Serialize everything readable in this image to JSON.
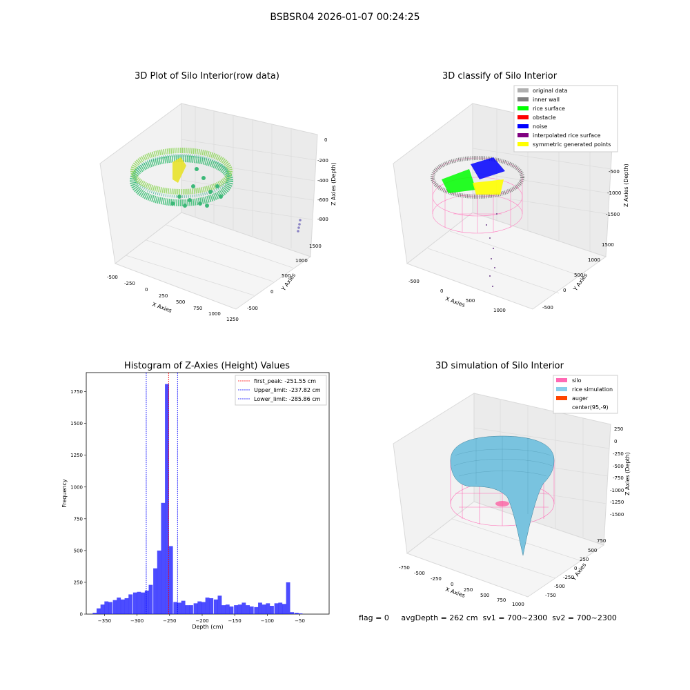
{
  "suptitle": "BSBSR04 2026-01-07 00:24:25",
  "footer": {
    "text": "flag = 0     avgDepth = 262 cm  sv1 = 700~2300  sv2 = 700~2300"
  },
  "panel_raw": {
    "title": "3D Plot of Silo Interior(row data)",
    "x_label": "X Axies",
    "y_label": "Y Axies",
    "z_label": "Z Axies (Depth)",
    "x_ticks": [
      "-500",
      "-250",
      "0",
      "250",
      "500",
      "750",
      "1000",
      "1250"
    ],
    "y_ticks": [
      "-500",
      "0",
      "500",
      "1000",
      "1500"
    ],
    "z_ticks": [
      "0",
      "-200",
      "-400",
      "-600",
      "-800"
    ]
  },
  "panel_classify": {
    "title": "3D classify of Silo Interior",
    "x_label": "X Axies",
    "y_label": "Y Axies",
    "z_label": "Z Axies (Depth)",
    "x_ticks": [
      "-500",
      "0",
      "500",
      "1000"
    ],
    "y_ticks": [
      "-500",
      "0",
      "500",
      "1000",
      "1500"
    ],
    "z_ticks": [
      "-500",
      "-1000",
      "-1500"
    ],
    "legend": [
      {
        "label": "original data",
        "color": "#b0b0b0"
      },
      {
        "label": "inner wall",
        "color": "#808080"
      },
      {
        "label": "rice surface",
        "color": "#00ff00"
      },
      {
        "label": "obstacle",
        "color": "#ff0000"
      },
      {
        "label": "noise",
        "color": "#0000ff"
      },
      {
        "label": "interpolated rice surface",
        "color": "#800080"
      },
      {
        "label": "symmetric generated points",
        "color": "#ffff00"
      }
    ]
  },
  "panel_sim": {
    "title": "3D simulation of Silo Interior",
    "x_label": "X Axies",
    "y_label": "Y Axies",
    "z_label": "Z Axies (Depth)",
    "x_ticks": [
      "-750",
      "-500",
      "-250",
      "0",
      "250",
      "500",
      "750",
      "1000"
    ],
    "y_ticks": [
      "750",
      "500",
      "250",
      "0",
      "-250",
      "-500",
      "-750"
    ],
    "z_ticks": [
      "250",
      "0",
      "-250",
      "-500",
      "-750",
      "-1000",
      "-1250",
      "-1500"
    ],
    "legend": [
      {
        "label": "silo",
        "color": "#ff69b4"
      },
      {
        "label": "rice simulation",
        "color": "#87ceeb"
      },
      {
        "label": "auger",
        "color": "#ff4500"
      },
      {
        "label": "center(95,-9)",
        "color": ""
      }
    ]
  },
  "chart_data": {
    "type": "bar",
    "title": "Histogram of Z-Axies (Height) Values",
    "xlabel": "Depth (cm)",
    "ylabel": "Frequency",
    "xlim": [
      -378,
      -5
    ],
    "ylim": [
      0,
      1900
    ],
    "bar_color": "#0000ff",
    "bin_width": 6.2,
    "x_ticks": [
      -350,
      -300,
      -250,
      -200,
      -150,
      -100,
      -50
    ],
    "y_ticks": [
      0,
      250,
      500,
      750,
      1000,
      1250,
      1500,
      1750
    ],
    "bins": [
      {
        "x": -365,
        "value": 10
      },
      {
        "x": -359,
        "value": 45
      },
      {
        "x": -353,
        "value": 75
      },
      {
        "x": -347,
        "value": 100
      },
      {
        "x": -341,
        "value": 95
      },
      {
        "x": -334,
        "value": 110
      },
      {
        "x": -328,
        "value": 130
      },
      {
        "x": -322,
        "value": 115
      },
      {
        "x": -316,
        "value": 125
      },
      {
        "x": -310,
        "value": 155
      },
      {
        "x": -303,
        "value": 170
      },
      {
        "x": -297,
        "value": 175
      },
      {
        "x": -291,
        "value": 170
      },
      {
        "x": -285,
        "value": 185
      },
      {
        "x": -279,
        "value": 230
      },
      {
        "x": -272,
        "value": 360
      },
      {
        "x": -266,
        "value": 500
      },
      {
        "x": -260,
        "value": 875
      },
      {
        "x": -254,
        "value": 1810
      },
      {
        "x": -248,
        "value": 535
      },
      {
        "x": -241,
        "value": 95
      },
      {
        "x": -235,
        "value": 90
      },
      {
        "x": -229,
        "value": 105
      },
      {
        "x": -223,
        "value": 70
      },
      {
        "x": -217,
        "value": 70
      },
      {
        "x": -210,
        "value": 85
      },
      {
        "x": -204,
        "value": 100
      },
      {
        "x": -198,
        "value": 95
      },
      {
        "x": -192,
        "value": 130
      },
      {
        "x": -186,
        "value": 125
      },
      {
        "x": -179,
        "value": 115
      },
      {
        "x": -173,
        "value": 145
      },
      {
        "x": -167,
        "value": 70
      },
      {
        "x": -161,
        "value": 75
      },
      {
        "x": -155,
        "value": 60
      },
      {
        "x": -148,
        "value": 70
      },
      {
        "x": -142,
        "value": 75
      },
      {
        "x": -136,
        "value": 90
      },
      {
        "x": -130,
        "value": 70
      },
      {
        "x": -124,
        "value": 60
      },
      {
        "x": -117,
        "value": 55
      },
      {
        "x": -111,
        "value": 90
      },
      {
        "x": -105,
        "value": 75
      },
      {
        "x": -99,
        "value": 85
      },
      {
        "x": -93,
        "value": 65
      },
      {
        "x": -86,
        "value": 85
      },
      {
        "x": -80,
        "value": 90
      },
      {
        "x": -74,
        "value": 80
      },
      {
        "x": -68,
        "value": 250
      },
      {
        "x": -62,
        "value": 15
      },
      {
        "x": -55,
        "value": 10
      },
      {
        "x": -49,
        "value": 5
      }
    ],
    "vlines": [
      {
        "label": "first_peak: -251.55 cm",
        "x": -251.55,
        "color": "#ff0000"
      },
      {
        "label": "Upper_limit: -237.82 cm",
        "x": -237.82,
        "color": "#0000ff"
      },
      {
        "label": "Lower_limit: -285.86 cm",
        "x": -285.86,
        "color": "#0000ff"
      }
    ]
  }
}
